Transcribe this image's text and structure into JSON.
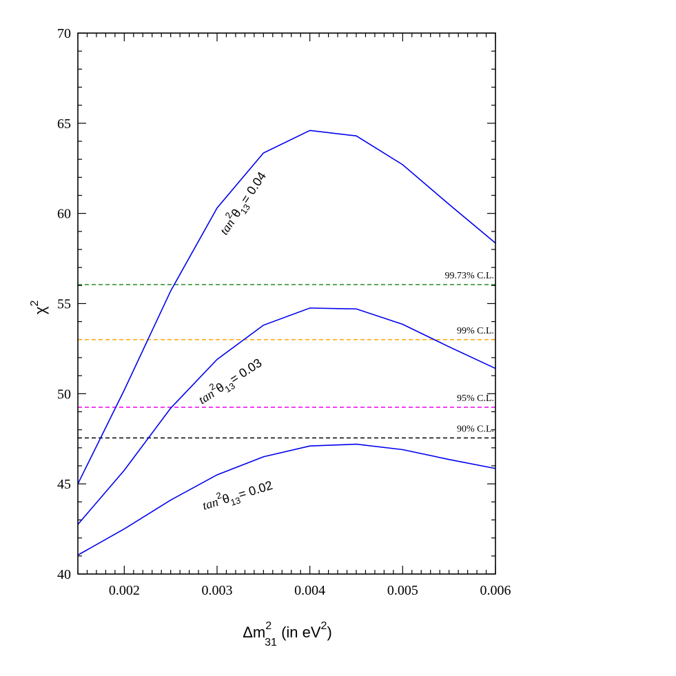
{
  "chart_data": {
    "type": "line",
    "xlabel": "Δm²₃₁ (in eV²)",
    "ylabel": "χ²",
    "xlim": [
      0.0015,
      0.006
    ],
    "ylim": [
      40,
      70
    ],
    "x_ticks": [
      "0.002",
      "0.003",
      "0.004",
      "0.005",
      "0.006"
    ],
    "y_ticks": [
      "40",
      "45",
      "50",
      "55",
      "60",
      "65",
      "70"
    ],
    "series": [
      {
        "name": "tan²θ13 = 0.04",
        "color": "#0000ee",
        "x": [
          0.0015,
          0.002,
          0.0025,
          0.003,
          0.0035,
          0.004,
          0.0045,
          0.005,
          0.0055,
          0.006
        ],
        "y": [
          45.0,
          50.2,
          55.7,
          60.3,
          63.35,
          64.6,
          64.3,
          62.7,
          60.5,
          58.35
        ]
      },
      {
        "name": "tan²θ13 = 0.03",
        "color": "#0000ee",
        "x": [
          0.0015,
          0.002,
          0.0025,
          0.003,
          0.0035,
          0.004,
          0.0045,
          0.005,
          0.0055,
          0.006
        ],
        "y": [
          42.75,
          45.75,
          49.2,
          51.9,
          53.8,
          54.75,
          54.7,
          53.85,
          52.6,
          51.4
        ]
      },
      {
        "name": "tan²θ13 = 0.02",
        "color": "#0000ee",
        "x": [
          0.0015,
          0.002,
          0.0025,
          0.003,
          0.0035,
          0.004,
          0.0045,
          0.005,
          0.0055,
          0.006
        ],
        "y": [
          41.05,
          42.5,
          44.1,
          45.5,
          46.5,
          47.1,
          47.2,
          46.9,
          46.35,
          45.85
        ]
      }
    ],
    "reference_lines": [
      {
        "label": "99.73% C.L.",
        "y": 56.05,
        "color": "#228b22"
      },
      {
        "label": "99% C.L.",
        "y": 53.0,
        "color": "#ffa500"
      },
      {
        "label": "95% C.L.",
        "y": 49.25,
        "color": "#ee00ee"
      },
      {
        "label": "90% C.L.",
        "y": 47.55,
        "color": "#000000"
      }
    ],
    "annotations": [
      {
        "base": "tan",
        "sup": "2",
        "theta": "θ",
        "sub": "13",
        "value": "= 0.04"
      },
      {
        "base": "tan",
        "sup": "2",
        "theta": "θ",
        "sub": "13",
        "value": "= 0.03"
      },
      {
        "base": "tan",
        "sup": "2",
        "theta": "θ",
        "sub": "13",
        "value": "= 0.02"
      }
    ]
  }
}
